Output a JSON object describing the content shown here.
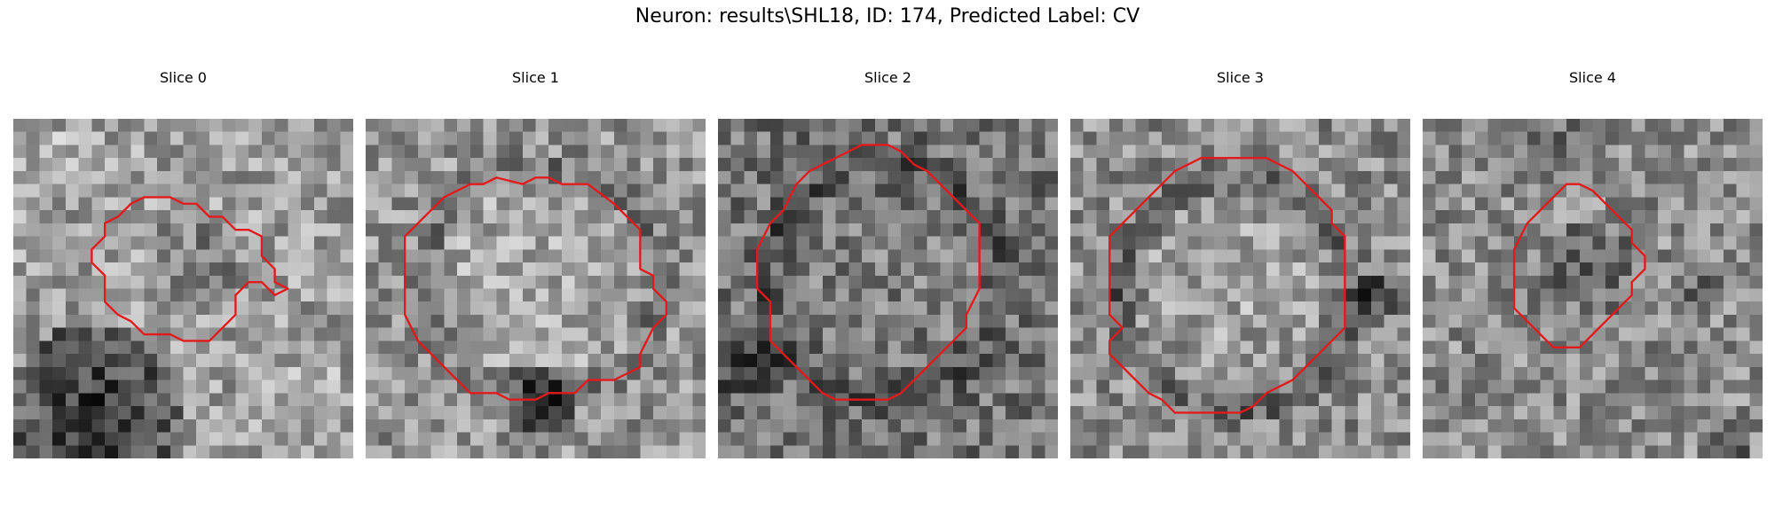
{
  "figure": {
    "title": "Neuron: results\\SHL18, ID: 174, Predicted Label: CV"
  },
  "panels": [
    {
      "title": "Slice 0",
      "contour_color": "#e31a1c",
      "contour": [
        [
          13,
          6.5
        ],
        [
          14,
          6.5
        ],
        [
          15,
          7.5
        ],
        [
          16,
          7.5
        ],
        [
          17,
          8.5
        ],
        [
          18,
          8.5
        ],
        [
          19,
          9
        ],
        [
          19,
          10.5
        ],
        [
          20,
          11.5
        ],
        [
          20,
          12.5
        ],
        [
          21,
          13
        ],
        [
          20,
          13.5
        ],
        [
          19,
          12.5
        ],
        [
          18,
          12.5
        ],
        [
          17,
          13.5
        ],
        [
          17,
          15
        ],
        [
          15,
          17
        ],
        [
          13,
          17
        ],
        [
          12,
          16.5
        ],
        [
          10,
          16.5
        ],
        [
          9,
          15.5
        ],
        [
          8,
          15
        ],
        [
          7,
          14
        ],
        [
          7,
          12
        ],
        [
          6,
          11
        ],
        [
          6,
          10
        ],
        [
          7,
          9
        ],
        [
          7,
          8
        ],
        [
          8,
          7.5
        ],
        [
          9,
          6.5
        ],
        [
          10,
          6
        ],
        [
          12,
          6
        ]
      ]
    },
    {
      "title": "Slice 1",
      "contour_color": "#e31a1c",
      "contour": [
        [
          12,
          5
        ],
        [
          13,
          4.5
        ],
        [
          14,
          4.5
        ],
        [
          15,
          5
        ],
        [
          17,
          5
        ],
        [
          19,
          6.5
        ],
        [
          20,
          7.5
        ],
        [
          21,
          8.5
        ],
        [
          21,
          11.5
        ],
        [
          22,
          12
        ],
        [
          22,
          13
        ],
        [
          23,
          14
        ],
        [
          23,
          15
        ],
        [
          22,
          16
        ],
        [
          21,
          18
        ],
        [
          21,
          19
        ],
        [
          20,
          19.5
        ],
        [
          19,
          20
        ],
        [
          17,
          20
        ],
        [
          16,
          21
        ],
        [
          14,
          21
        ],
        [
          13,
          21.5
        ],
        [
          11,
          21.5
        ],
        [
          10,
          21
        ],
        [
          8,
          21
        ],
        [
          7,
          20
        ],
        [
          6,
          19
        ],
        [
          5,
          18
        ],
        [
          4,
          17
        ],
        [
          3,
          15
        ],
        [
          3,
          9
        ],
        [
          4,
          8
        ],
        [
          5,
          7
        ],
        [
          6,
          6
        ],
        [
          7,
          5.5
        ],
        [
          8,
          5
        ],
        [
          9,
          5
        ],
        [
          10,
          4.5
        ]
      ]
    },
    {
      "title": "Slice 2",
      "contour_color": "#e31a1c",
      "contour": [
        [
          11,
          2
        ],
        [
          13,
          2
        ],
        [
          14,
          2.5
        ],
        [
          15,
          3.5
        ],
        [
          16,
          4
        ],
        [
          17,
          5
        ],
        [
          18,
          6
        ],
        [
          19,
          7
        ],
        [
          20,
          8
        ],
        [
          20,
          13
        ],
        [
          19,
          15
        ],
        [
          19,
          16
        ],
        [
          18,
          17
        ],
        [
          17,
          18
        ],
        [
          16,
          19
        ],
        [
          15,
          20
        ],
        [
          14,
          21
        ],
        [
          13,
          21.5
        ],
        [
          9,
          21.5
        ],
        [
          8,
          21
        ],
        [
          7,
          20
        ],
        [
          6,
          19
        ],
        [
          5,
          18
        ],
        [
          4,
          17
        ],
        [
          4,
          14
        ],
        [
          3,
          13
        ],
        [
          3,
          10
        ],
        [
          4,
          8
        ],
        [
          5,
          7
        ],
        [
          6,
          5
        ],
        [
          7,
          4
        ],
        [
          8,
          3.5
        ],
        [
          9,
          3
        ],
        [
          10,
          2.5
        ]
      ]
    },
    {
      "title": "Slice 3",
      "contour_color": "#e31a1c",
      "contour": [
        [
          10,
          3
        ],
        [
          15,
          3
        ],
        [
          17,
          4
        ],
        [
          18,
          5
        ],
        [
          19,
          6
        ],
        [
          20,
          7
        ],
        [
          20,
          8
        ],
        [
          21,
          9
        ],
        [
          21,
          16
        ],
        [
          20,
          17
        ],
        [
          19,
          18
        ],
        [
          18,
          19
        ],
        [
          17,
          20
        ],
        [
          15,
          21
        ],
        [
          14,
          22
        ],
        [
          13,
          22.5
        ],
        [
          8,
          22.5
        ],
        [
          7,
          21.5
        ],
        [
          6,
          21
        ],
        [
          5,
          20
        ],
        [
          4,
          19
        ],
        [
          3,
          18
        ],
        [
          3,
          17
        ],
        [
          4,
          16
        ],
        [
          3,
          15
        ],
        [
          3,
          9
        ],
        [
          4,
          8
        ],
        [
          5,
          7
        ],
        [
          6,
          6
        ],
        [
          7,
          5
        ],
        [
          8,
          4
        ],
        [
          9,
          3.5
        ]
      ]
    },
    {
      "title": "Slice 4",
      "contour_color": "#e31a1c",
      "contour": [
        [
          11,
          5
        ],
        [
          12,
          5
        ],
        [
          13,
          5.5
        ],
        [
          14,
          6.5
        ],
        [
          15,
          7.5
        ],
        [
          16,
          8.5
        ],
        [
          16,
          9.5
        ],
        [
          17,
          10.5
        ],
        [
          17,
          11.5
        ],
        [
          16,
          12.5
        ],
        [
          16,
          13.5
        ],
        [
          15,
          14.5
        ],
        [
          14,
          15.5
        ],
        [
          13,
          16.5
        ],
        [
          12,
          17.5
        ],
        [
          10,
          17.5
        ],
        [
          9,
          16.5
        ],
        [
          8,
          15.5
        ],
        [
          7,
          14.5
        ],
        [
          7,
          10
        ],
        [
          8,
          8
        ],
        [
          9,
          7
        ],
        [
          10,
          6
        ]
      ]
    }
  ]
}
